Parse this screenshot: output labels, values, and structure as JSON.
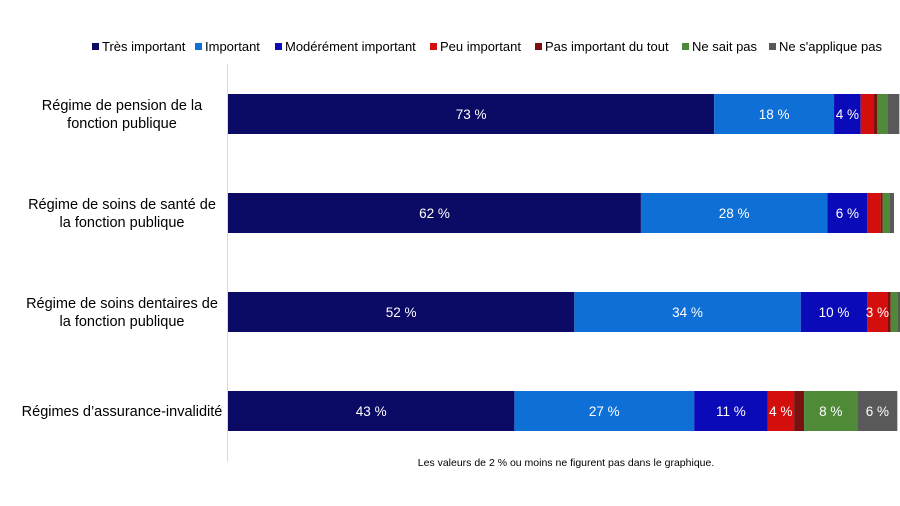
{
  "chart_data": {
    "type": "bar",
    "orientation": "horizontal",
    "stacked": true,
    "xlim": [
      0,
      100
    ],
    "legend_position": "top",
    "categories": [
      [
        "Régime de pension de la",
        "fonction publique"
      ],
      [
        "Régime de soins de santé de",
        "la fonction publique"
      ],
      [
        "Régime de soins dentaires de",
        "la fonction publique"
      ],
      [
        "Régimes d’assurance-invalidité"
      ]
    ],
    "series": [
      {
        "name": "Très important",
        "color": "#0b0b66",
        "values": [
          73,
          62,
          52,
          43
        ],
        "labels": [
          "73 %",
          "62 %",
          "52 %",
          "43 %"
        ]
      },
      {
        "name": "Important",
        "color": "#0e6fd6",
        "values": [
          18,
          28,
          34,
          27
        ],
        "labels": [
          "18 %",
          "28 %",
          "34 %",
          "27 %"
        ]
      },
      {
        "name": "Modérément important",
        "color": "#0a0ab8",
        "values": [
          4,
          6,
          10,
          11
        ],
        "labels": [
          "4 %",
          "6 %",
          "10 %",
          "11 %"
        ]
      },
      {
        "name": "Peu important",
        "color": "#d40d0d",
        "values": [
          2,
          2,
          3,
          4
        ],
        "labels": [
          "",
          "",
          "3 %",
          "4 %"
        ]
      },
      {
        "name": "Pas important du tout",
        "color": "#7a1010",
        "values": [
          0.5,
          0.3,
          0.5,
          1.5
        ],
        "labels": [
          "",
          "",
          "",
          ""
        ]
      },
      {
        "name": "Ne sait pas",
        "color": "#4e8a37",
        "values": [
          1.5,
          1.1,
          1,
          8
        ],
        "labels": [
          "",
          "",
          "",
          "8 %"
        ]
      },
      {
        "name": "Ne s'applique pas",
        "color": "#595959",
        "values": [
          1.8,
          0.6,
          0.5,
          6
        ],
        "labels": [
          "",
          "",
          "",
          "6 %"
        ]
      }
    ],
    "footnote": "Les valeurs de 2 % ou moins ne figurent pas dans le graphique."
  }
}
